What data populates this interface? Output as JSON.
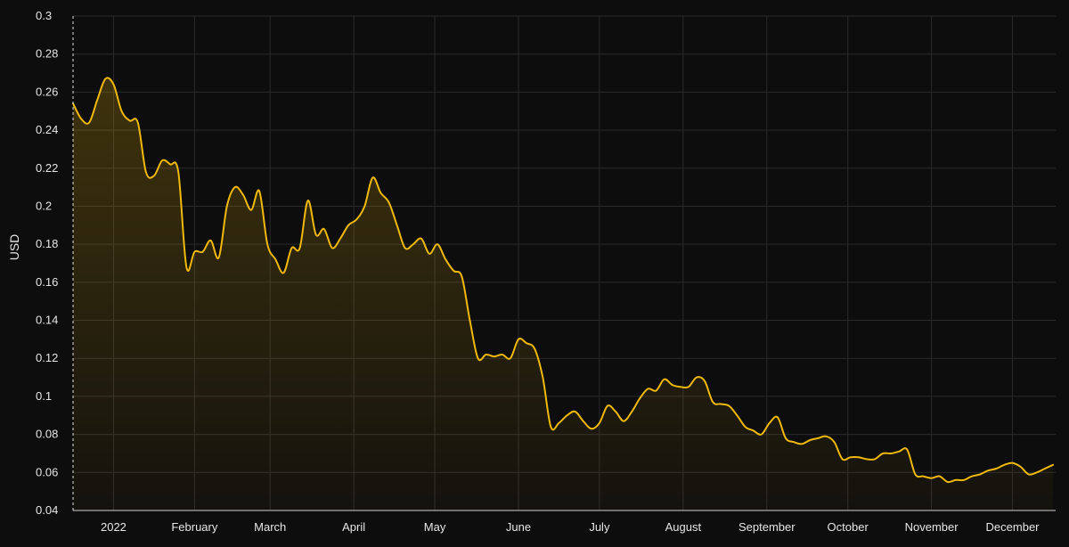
{
  "chart_data": {
    "type": "area",
    "title": "",
    "xlabel": "",
    "ylabel": "USD",
    "ylim": [
      0.04,
      0.3
    ],
    "yticks": [
      0.04,
      0.06,
      0.08,
      0.1,
      0.12,
      0.14,
      0.16,
      0.18,
      0.2,
      0.22,
      0.24,
      0.26,
      0.28,
      0.3
    ],
    "ytick_labels": [
      "0.04",
      "0.06",
      "0.08",
      "0.1",
      "0.12",
      "0.14",
      "0.16",
      "0.18",
      "0.2",
      "0.22",
      "0.24",
      "0.26",
      "0.28",
      "0.3"
    ],
    "xlim": [
      "2022-01-01",
      "2022-12-31"
    ],
    "xticks": [
      {
        "date": "2022-01-16",
        "label": "2022"
      },
      {
        "date": "2022-02-15",
        "label": "February"
      },
      {
        "date": "2022-03-15",
        "label": "March"
      },
      {
        "date": "2022-04-15",
        "label": "April"
      },
      {
        "date": "2022-05-15",
        "label": "May"
      },
      {
        "date": "2022-06-15",
        "label": "June"
      },
      {
        "date": "2022-07-15",
        "label": "July"
      },
      {
        "date": "2022-08-15",
        "label": "August"
      },
      {
        "date": "2022-09-15",
        "label": "September"
      },
      {
        "date": "2022-10-15",
        "label": "October"
      },
      {
        "date": "2022-11-15",
        "label": "November"
      },
      {
        "date": "2022-12-15",
        "label": "December"
      }
    ],
    "grid": true,
    "legend": "none",
    "line_color": "#f0b90b",
    "fill_color": "#f0b90b",
    "series": [
      {
        "name": "",
        "x": [
          "2022-01-01",
          "2022-01-04",
          "2022-01-07",
          "2022-01-10",
          "2022-01-13",
          "2022-01-16",
          "2022-01-19",
          "2022-01-22",
          "2022-01-25",
          "2022-01-28",
          "2022-01-31",
          "2022-02-03",
          "2022-02-06",
          "2022-02-09",
          "2022-02-12",
          "2022-02-15",
          "2022-02-18",
          "2022-02-21",
          "2022-02-24",
          "2022-02-27",
          "2022-03-02",
          "2022-03-05",
          "2022-03-08",
          "2022-03-11",
          "2022-03-14",
          "2022-03-17",
          "2022-03-20",
          "2022-03-23",
          "2022-03-26",
          "2022-03-29",
          "2022-04-01",
          "2022-04-04",
          "2022-04-07",
          "2022-04-10",
          "2022-04-13",
          "2022-04-16",
          "2022-04-19",
          "2022-04-22",
          "2022-04-25",
          "2022-04-28",
          "2022-05-01",
          "2022-05-04",
          "2022-05-07",
          "2022-05-10",
          "2022-05-13",
          "2022-05-16",
          "2022-05-19",
          "2022-05-22",
          "2022-05-25",
          "2022-05-28",
          "2022-05-31",
          "2022-06-03",
          "2022-06-06",
          "2022-06-09",
          "2022-06-12",
          "2022-06-15",
          "2022-06-18",
          "2022-06-21",
          "2022-06-24",
          "2022-06-27",
          "2022-06-30",
          "2022-07-03",
          "2022-07-06",
          "2022-07-09",
          "2022-07-12",
          "2022-07-15",
          "2022-07-18",
          "2022-07-21",
          "2022-07-24",
          "2022-07-27",
          "2022-07-30",
          "2022-08-02",
          "2022-08-05",
          "2022-08-08",
          "2022-08-11",
          "2022-08-14",
          "2022-08-17",
          "2022-08-20",
          "2022-08-23",
          "2022-08-26",
          "2022-08-29",
          "2022-09-01",
          "2022-09-04",
          "2022-09-07",
          "2022-09-10",
          "2022-09-13",
          "2022-09-16",
          "2022-09-19",
          "2022-09-22",
          "2022-09-25",
          "2022-09-28",
          "2022-10-01",
          "2022-10-04",
          "2022-10-07",
          "2022-10-10",
          "2022-10-13",
          "2022-10-16",
          "2022-10-19",
          "2022-10-22",
          "2022-10-25",
          "2022-10-28",
          "2022-10-31",
          "2022-11-03",
          "2022-11-06",
          "2022-11-09",
          "2022-11-12",
          "2022-11-15",
          "2022-11-18",
          "2022-11-21",
          "2022-11-24",
          "2022-11-27",
          "2022-11-30",
          "2022-12-03",
          "2022-12-06",
          "2022-12-09",
          "2022-12-12",
          "2022-12-15",
          "2022-12-18",
          "2022-12-21",
          "2022-12-24",
          "2022-12-27",
          "2022-12-30"
        ],
        "values": [
          0.254,
          0.246,
          0.244,
          0.256,
          0.267,
          0.264,
          0.25,
          0.245,
          0.244,
          0.218,
          0.216,
          0.224,
          0.222,
          0.218,
          0.168,
          0.176,
          0.176,
          0.182,
          0.173,
          0.2,
          0.21,
          0.206,
          0.198,
          0.208,
          0.18,
          0.172,
          0.165,
          0.178,
          0.178,
          0.203,
          0.185,
          0.188,
          0.178,
          0.183,
          0.19,
          0.193,
          0.2,
          0.215,
          0.207,
          0.202,
          0.19,
          0.178,
          0.18,
          0.183,
          0.175,
          0.18,
          0.172,
          0.166,
          0.163,
          0.14,
          0.12,
          0.122,
          0.121,
          0.122,
          0.12,
          0.13,
          0.128,
          0.125,
          0.11,
          0.084,
          0.086,
          0.09,
          0.092,
          0.087,
          0.083,
          0.086,
          0.095,
          0.092,
          0.087,
          0.092,
          0.099,
          0.104,
          0.103,
          0.109,
          0.106,
          0.105,
          0.105,
          0.11,
          0.108,
          0.097,
          0.096,
          0.095,
          0.09,
          0.084,
          0.082,
          0.08,
          0.086,
          0.089,
          0.078,
          0.076,
          0.075,
          0.077,
          0.078,
          0.079,
          0.076,
          0.067,
          0.068,
          0.068,
          0.067,
          0.067,
          0.07,
          0.07,
          0.071,
          0.072,
          0.059,
          0.058,
          0.057,
          0.058,
          0.055,
          0.056,
          0.056,
          0.058,
          0.059,
          0.061,
          0.062,
          0.064,
          0.065,
          0.063,
          0.059,
          0.06,
          0.062,
          0.064
        ]
      }
    ]
  }
}
